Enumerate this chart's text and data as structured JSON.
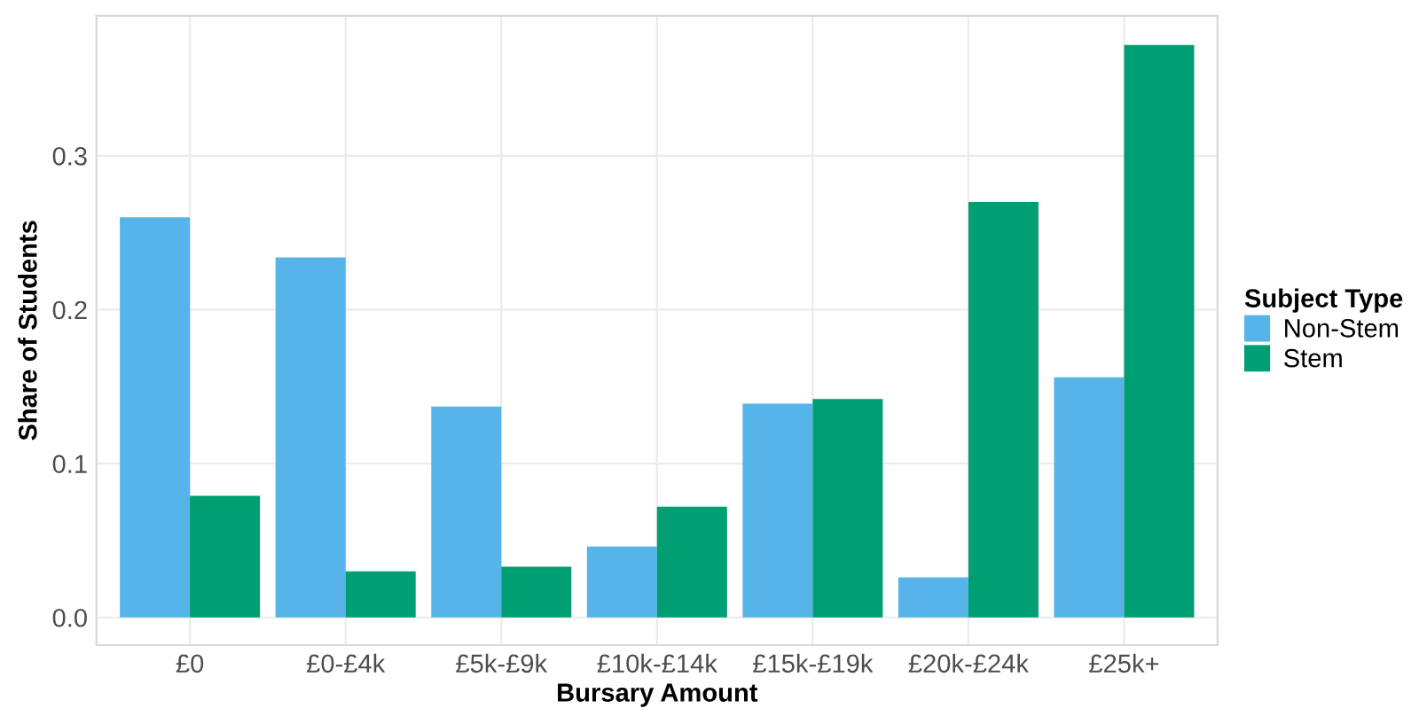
{
  "chart_data": {
    "type": "bar",
    "xlabel": "Bursary Amount",
    "ylabel": "Share of Students",
    "legend_title": "Subject Type",
    "legend": "right",
    "grid": true,
    "categories": [
      "£0",
      "£0-£4k",
      "£5k-£9k",
      "£10k-£14k",
      "£15k-£19k",
      "£20k-£24k",
      "£25k+"
    ],
    "series": [
      {
        "name": "Non-Stem",
        "color": "#56b4e9",
        "values": [
          0.26,
          0.234,
          0.137,
          0.046,
          0.139,
          0.026,
          0.156
        ]
      },
      {
        "name": "Stem",
        "color": "#009e73",
        "values": [
          0.079,
          0.03,
          0.033,
          0.072,
          0.142,
          0.27,
          0.372
        ]
      }
    ],
    "ylim": [
      -0.018,
      0.391
    ],
    "yticks": [
      {
        "value": 0,
        "label": "0.0"
      },
      0.1,
      0.2,
      0.3
    ]
  }
}
